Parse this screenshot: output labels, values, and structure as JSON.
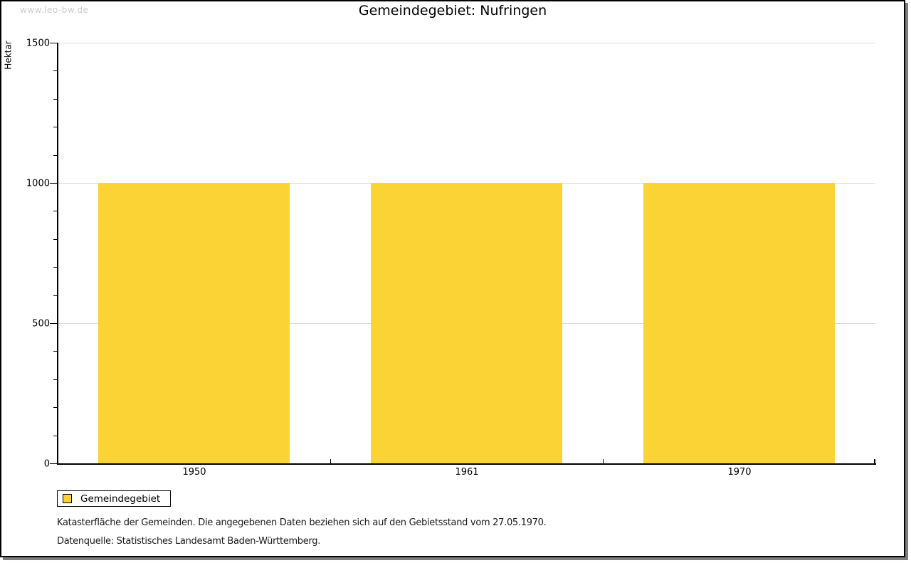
{
  "watermark": "www.leo-bw.de",
  "chart_data": {
    "type": "bar",
    "title": "Gemeindegebiet: Nufringen",
    "ylabel": "Hektar",
    "xlabel": "",
    "categories": [
      "1950",
      "1961",
      "1970"
    ],
    "values": [
      1000,
      1000,
      1000
    ],
    "ylim": [
      0,
      1500
    ],
    "ytick_major_step": 500,
    "ytick_minor_step": 100,
    "ytick_labels": [
      "0",
      "500",
      "1000",
      "1500"
    ],
    "grid": true,
    "legend": {
      "label": "Gemeindegebiet",
      "position": "bottom-left"
    }
  },
  "footnotes": [
    "Katasterfläche der Gemeinden. Die angegebenen Daten beziehen sich auf den Gebietsstand vom 27.05.1970.",
    "Datenquelle: Statistisches Landesamt Baden-Württemberg."
  ],
  "colors": {
    "bar": "#FCD334",
    "gridline": "#DCDCDC",
    "axis": "#000000",
    "watermark": "#CCCCCC",
    "background": "#FFFFFF",
    "frame_shadow": "#7D7D7D"
  }
}
